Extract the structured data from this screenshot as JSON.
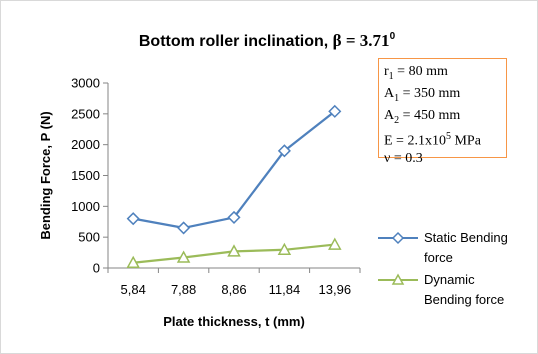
{
  "chart_data": {
    "type": "line",
    "title": {
      "prefix": "Bottom roller inclination, ",
      "symbol": "β = 3.71",
      "superscript": "0"
    },
    "xlabel": "Plate thickness, t (mm)",
    "ylabel": "Bending Force, P (N)",
    "categories": [
      "5,84",
      "7,88",
      "8,86",
      "11,84",
      "13,96"
    ],
    "ylim": [
      0,
      3000
    ],
    "yticks": [
      0,
      500,
      1000,
      1500,
      2000,
      2500,
      3000
    ],
    "grid": false,
    "legend_position": "right",
    "series": [
      {
        "name": "Static Bending force",
        "label_lines": [
          "Static Bending",
          "force"
        ],
        "marker": "diamond",
        "color": "#4f81bd",
        "values": [
          800,
          650,
          820,
          1900,
          2540
        ]
      },
      {
        "name": "Dynamic Bending force",
        "label_lines": [
          "Dynamic",
          "Bending force"
        ],
        "marker": "triangle",
        "color": "#9bbb59",
        "values": [
          85,
          170,
          270,
          295,
          380
        ]
      }
    ],
    "annotation_box": {
      "border_color": "#f79646",
      "lines": [
        {
          "main": "r",
          "sub": "1",
          "rest": " = 80 mm"
        },
        {
          "main": "A",
          "sub": "1",
          "rest": " = 350 mm"
        },
        {
          "main": "A",
          "sub": "2",
          "rest": " = 450 mm"
        },
        {
          "main": "E = 2.1x10",
          "sup": "5",
          "rest": " MPa"
        },
        {
          "main": "ν = 0.3"
        }
      ]
    }
  }
}
